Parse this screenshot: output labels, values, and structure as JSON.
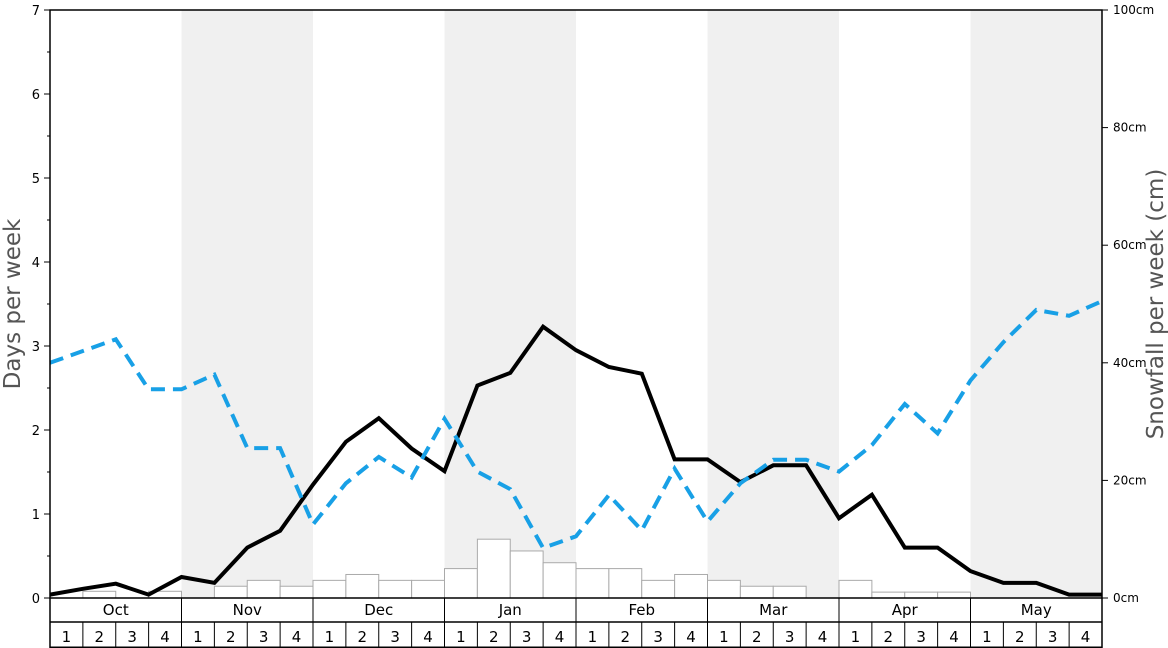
{
  "chart_data": {
    "type": "bar+line",
    "y_left": {
      "label": "Days per week",
      "range": [
        0,
        7
      ],
      "ticks": [
        0,
        1,
        2,
        3,
        4,
        5,
        6,
        7
      ]
    },
    "y_right": {
      "label": "Snowfall per week (cm)",
      "range": [
        0,
        100
      ],
      "ticks": [
        "0cm",
        "20cm",
        "40cm",
        "60cm",
        "80cm",
        "100cm"
      ]
    },
    "months": [
      "Oct",
      "Nov",
      "Dec",
      "Jan",
      "Feb",
      "Mar",
      "Apr",
      "May"
    ],
    "weeks_per_month": [
      "1",
      "2",
      "3",
      "4"
    ],
    "colors": {
      "shade": "#f0f0f0",
      "bars_fill": "#ffffff",
      "bars_stroke": "#aaaaaa",
      "snow_days_line": "#000000",
      "snowfall_line": "#18a0e6"
    },
    "series": [
      {
        "kind": "bar",
        "axis": "left",
        "values": [
          0.0,
          0.08,
          0.0,
          0.08,
          0.0,
          0.14,
          0.21,
          0.14,
          0.21,
          0.28,
          0.21,
          0.21,
          0.35,
          0.7,
          0.56,
          0.42,
          0.35,
          0.35,
          0.21,
          0.28,
          0.21,
          0.14,
          0.14,
          0.0,
          0.21,
          0.07,
          0.07,
          0.07,
          0.0,
          0.0,
          0.0,
          0.0
        ]
      },
      {
        "kind": "line",
        "axis": "left",
        "style": "solid",
        "values": [
          0.04,
          0.11,
          0.17,
          0.04,
          0.25,
          0.18,
          0.6,
          0.8,
          1.35,
          1.86,
          2.14,
          1.78,
          1.51,
          2.53,
          2.68,
          3.23,
          2.95,
          2.75,
          2.67,
          1.65,
          1.65,
          1.38,
          1.58,
          1.58,
          0.95,
          1.23,
          0.6,
          0.6,
          0.32,
          0.18,
          0.18,
          0.04,
          0.04
        ]
      },
      {
        "kind": "line",
        "axis": "right",
        "style": "dashed",
        "values": [
          40.0,
          42.0,
          44.0,
          35.5,
          35.5,
          38.0,
          25.5,
          25.5,
          12.5,
          19.5,
          24.0,
          20.5,
          30.5,
          21.5,
          18.5,
          8.5,
          10.5,
          17.5,
          11.5,
          22.0,
          13.0,
          19.5,
          23.5,
          23.5,
          21.5,
          26.0,
          33.0,
          28.0,
          37.0,
          43.5,
          49.0,
          48.0,
          50.5
        ]
      }
    ]
  }
}
